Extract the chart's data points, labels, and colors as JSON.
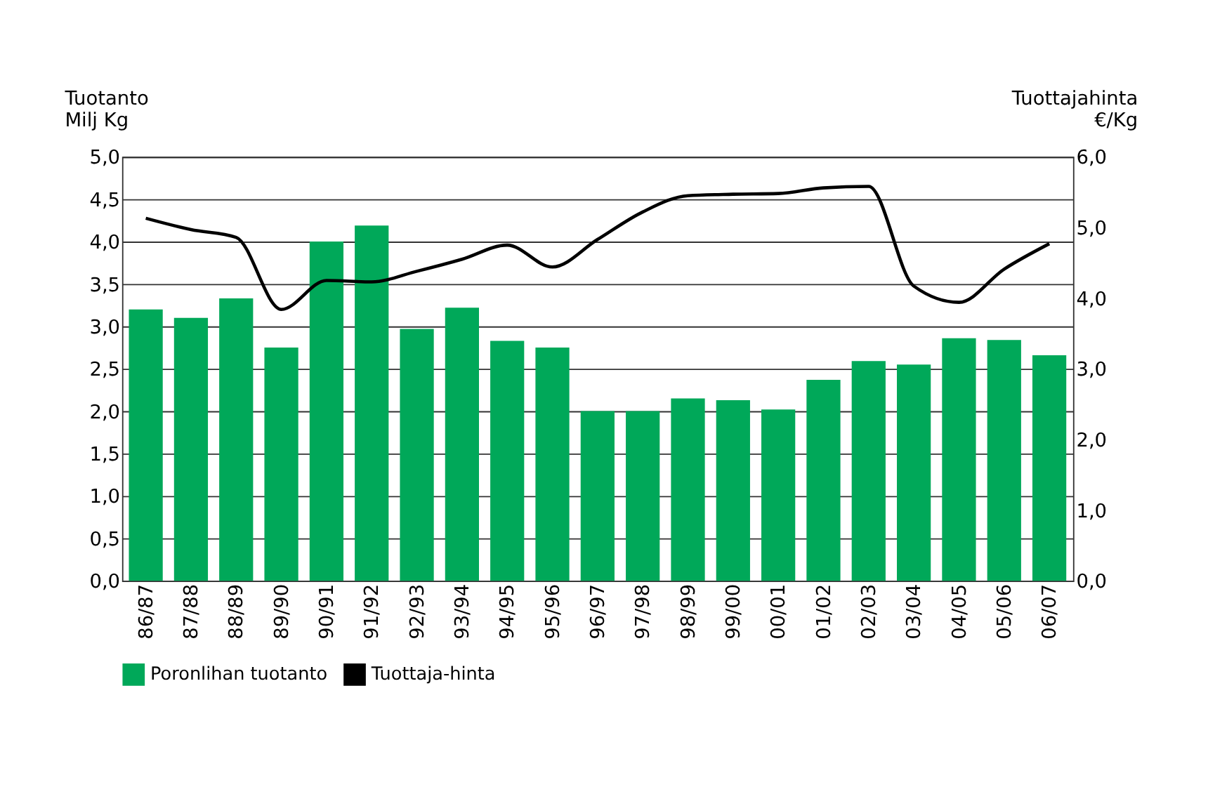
{
  "chart_data": {
    "type": "bar",
    "ylabel": "Tuotanto\nMilj  Kg",
    "y2label": "Tuottajahinta\n€/Kg",
    "categories": [
      "86/87",
      "87/88",
      "88/89",
      "89/90",
      "90/91",
      "91/92",
      "92/93",
      "93/94",
      "94/95",
      "95/96",
      "96/97",
      "97/98",
      "98/99",
      "99/00",
      "00/01",
      "01/02",
      "02/03",
      "03/04",
      "04/05",
      "05/06",
      "06/07"
    ],
    "series": [
      {
        "name": "Poronlihan tuotanto",
        "color": "#00a859",
        "values": [
          3.2,
          3.1,
          3.33,
          2.75,
          4.0,
          4.19,
          2.97,
          3.22,
          2.83,
          2.75,
          2.0,
          2.0,
          2.15,
          2.13,
          2.02,
          2.37,
          2.59,
          2.55,
          2.86,
          2.84,
          2.66
        ]
      },
      {
        "name": "Tuottaja-hinta",
        "type": "line",
        "axis": "y2",
        "color": "#000000",
        "values": [
          5.13,
          4.97,
          4.86,
          3.84,
          4.25,
          4.23,
          4.38,
          4.55,
          4.75,
          4.44,
          4.83,
          5.22,
          5.45,
          5.47,
          5.48,
          5.56,
          5.58,
          4.17,
          3.94,
          4.41,
          4.77
        ]
      }
    ],
    "ylim": [
      0,
      5
    ],
    "yticks": [
      {
        "value": 0,
        "label": "0,0"
      },
      {
        "value": 0.5,
        "label": "0,5"
      },
      {
        "value": 1,
        "label": "1,0"
      },
      {
        "value": 1.5,
        "label": "1,5"
      },
      {
        "value": 2,
        "label": "2,0"
      },
      {
        "value": 2.5,
        "label": "2,5"
      },
      {
        "value": 3,
        "label": "3,0"
      },
      {
        "value": 3.5,
        "label": "3,5"
      },
      {
        "value": 4,
        "label": "4,0"
      },
      {
        "value": 4.5,
        "label": "4,5"
      },
      {
        "value": 5,
        "label": "5,0"
      }
    ],
    "y2lim": [
      0,
      6
    ],
    "y2ticks": [
      {
        "value": 0,
        "label": "0,0"
      },
      {
        "value": 1,
        "label": "1,0"
      },
      {
        "value": 2,
        "label": "2,0"
      },
      {
        "value": 3,
        "label": "3,0"
      },
      {
        "value": 4,
        "label": "4,0"
      },
      {
        "value": 5,
        "label": "5,0"
      },
      {
        "value": 6,
        "label": "6,0"
      }
    ],
    "grid": "y",
    "legend": "bottom",
    "line_style": "solid",
    "marker": "none"
  }
}
